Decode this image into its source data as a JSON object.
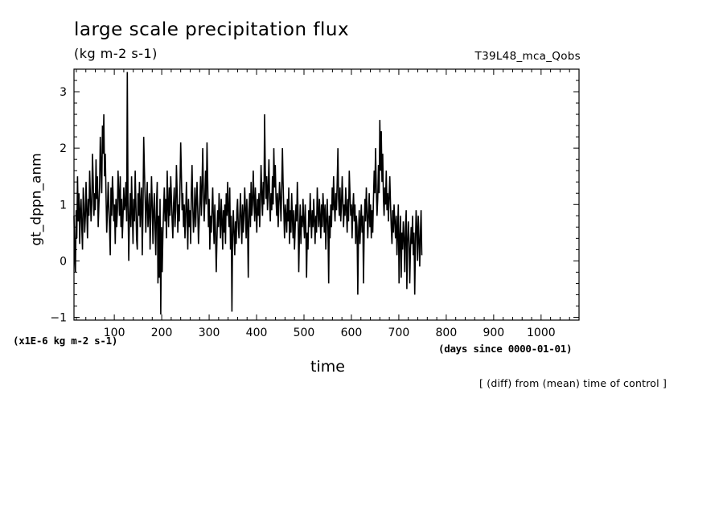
{
  "chart_data": {
    "type": "line",
    "title": "large scale precipitation flux",
    "units": "(kg m-2 s-1)",
    "run_name": "T39L48_mca_Qobs",
    "ylabel": "gt_dppn_anm",
    "xlabel": "time",
    "x_units": "(days since 0000-01-01)",
    "y_scale_note": "(x1E-6 kg m-2 s-1)",
    "annotation": "[ (diff) from (mean) time of control ]",
    "xlim": [
      15,
      1080
    ],
    "ylim": [
      -1.05,
      3.4
    ],
    "x_ticks": [
      100,
      200,
      300,
      400,
      500,
      600,
      700,
      800,
      900,
      1000
    ],
    "y_ticks": [
      -1,
      0,
      1,
      2,
      3
    ],
    "series": [
      {
        "name": "gt_dppn_anm",
        "x_start": 15,
        "x_step": 1.5,
        "values": [
          0.8,
          0.1,
          -0.2,
          0.9,
          0.4,
          1.5,
          0.7,
          1.2,
          0.3,
          0.9,
          1.1,
          0.6,
          0.2,
          1.3,
          1.0,
          0.5,
          0.8,
          1.4,
          0.9,
          0.4,
          1.1,
          0.8,
          1.6,
          1.2,
          0.7,
          1.0,
          1.9,
          1.4,
          0.8,
          1.2,
          0.9,
          1.8,
          1.1,
          1.5,
          0.6,
          1.0,
          1.3,
          2.2,
          1.7,
          1.2,
          2.4,
          1.9,
          2.6,
          1.5,
          1.9,
          1.2,
          0.5,
          0.9,
          1.4,
          1.0,
          0.6,
          0.1,
          1.3,
          0.8,
          1.5,
          1.2,
          0.7,
          1.0,
          0.3,
          1.1,
          0.6,
          0.9,
          1.6,
          1.2,
          0.8,
          1.5,
          0.6,
          1.1,
          0.4,
          0.8,
          1.3,
          0.9,
          1.0,
          1.4,
          0.7,
          3.35,
          1.0,
          0.0,
          0.8,
          1.2,
          0.6,
          1.5,
          0.9,
          0.3,
          1.1,
          0.7,
          1.6,
          1.0,
          0.4,
          0.2,
          1.2,
          0.8,
          1.4,
          0.6,
          1.0,
          1.3,
          0.1,
          0.9,
          2.2,
          1.6,
          1.1,
          0.5,
          1.0,
          1.4,
          0.6,
          0.9,
          1.2,
          0.2,
          0.8,
          1.5,
          1.0,
          0.3,
          0.9,
          1.2,
          0.6,
          0.1,
          1.0,
          1.4,
          -0.4,
          0.8,
          -0.3,
          1.1,
          -0.95,
          0.6,
          -0.2,
          0.5,
          0.9,
          1.3,
          0.7,
          1.1,
          0.4,
          1.6,
          1.0,
          0.6,
          1.3,
          0.8,
          1.5,
          1.1,
          0.7,
          0.4,
          1.0,
          1.3,
          0.6,
          0.9,
          1.7,
          1.2,
          0.5,
          1.0,
          0.7,
          1.3,
          2.1,
          1.5,
          0.9,
          1.2,
          0.6,
          1.0,
          0.4,
          0.8,
          1.4,
          0.9,
          0.2,
          1.1,
          0.6,
          0.9,
          0.3,
          1.2,
          1.7,
          1.0,
          0.5,
          0.8,
          1.3,
          0.6,
          1.0,
          1.4,
          0.9,
          0.3,
          0.7,
          1.1,
          1.5,
          0.8,
          1.3,
          2.0,
          1.2,
          0.7,
          1.1,
          1.6,
          1.0,
          2.1,
          1.4,
          0.6,
          1.1,
          0.2,
          0.8,
          0.5,
          0.9,
          1.3,
          0.7,
          0.3,
          1.0,
          0.5,
          -0.2,
          0.4,
          0.9,
          0.6,
          1.2,
          0.8,
          0.4,
          1.1,
          0.7,
          0.2,
          0.9,
          0.5,
          1.0,
          0.3,
          1.2,
          0.8,
          1.4,
          0.9,
          0.6,
          1.3,
          0.2,
          0.8,
          -0.9,
          0.4,
          0.9,
          0.5,
          0.1,
          0.7,
          0.3,
          0.9,
          1.1,
          0.6,
          0.4,
          0.8,
          1.2,
          0.7,
          0.3,
          1.0,
          0.5,
          0.8,
          1.3,
          0.9,
          0.4,
          1.1,
          0.7,
          -0.3,
          0.9,
          1.2,
          0.6,
          1.4,
          0.8,
          1.0,
          1.6,
          1.1,
          0.7,
          1.3,
          0.9,
          0.5,
          1.1,
          0.8,
          1.2,
          0.6,
          1.0,
          1.7,
          1.2,
          0.8,
          1.4,
          1.0,
          2.6,
          1.6,
          1.1,
          1.5,
          0.9,
          1.3,
          1.8,
          1.1,
          0.7,
          1.2,
          0.9,
          1.5,
          1.0,
          2.0,
          1.3,
          1.7,
          1.1,
          0.8,
          1.2,
          0.6,
          1.0,
          1.4,
          1.1,
          0.7,
          1.3,
          2.0,
          1.4,
          0.9,
          0.4,
          1.0,
          0.8,
          0.5,
          1.1,
          0.7,
          1.3,
          0.3,
          0.9,
          0.5,
          1.2,
          0.8,
          0.4,
          0.9,
          0.2,
          0.6,
          1.0,
          0.7,
          1.4,
          0.9,
          -0.2,
          0.5,
          1.0,
          0.3,
          0.8,
          0.6,
          1.1,
          0.7,
          0.4,
          1.0,
          0.6,
          -0.3,
          0.5,
          0.2,
          0.9,
          0.6,
          1.2,
          0.8,
          0.4,
          0.9,
          0.6,
          1.1,
          0.7,
          0.3,
          0.8,
          0.5,
          1.3,
          0.9,
          0.6,
          1.1,
          0.8,
          0.4,
          1.0,
          0.6,
          1.2,
          0.9,
          0.5,
          1.0,
          0.2,
          0.7,
          1.1,
          0.6,
          -0.4,
          0.8,
          0.4,
          1.0,
          0.6,
          1.3,
          0.9,
          1.5,
          1.0,
          0.7,
          1.2,
          0.9,
          1.4,
          2.0,
          1.1,
          0.8,
          1.3,
          0.7,
          1.0,
          1.5,
          1.1,
          0.6,
          1.0,
          0.8,
          1.3,
          0.9,
          0.5,
          1.1,
          0.7,
          1.6,
          1.2,
          0.8,
          1.0,
          0.4,
          0.9,
          1.2,
          0.7,
          1.0,
          0.3,
          0.8,
          0.6,
          -0.6,
          0.5,
          0.9,
          0.3,
          0.7,
          1.0,
          0.5,
          0.8,
          -0.4,
          0.6,
          1.1,
          0.7,
          1.3,
          0.9,
          0.4,
          0.8,
          1.2,
          0.6,
          1.0,
          0.4,
          0.9,
          0.5,
          1.1,
          1.6,
          1.2,
          2.0,
          1.3,
          0.8,
          1.1,
          1.7,
          1.2,
          2.5,
          1.6,
          2.3,
          1.4,
          1.9,
          1.1,
          0.8,
          1.3,
          1.0,
          1.6,
          0.9,
          1.2,
          0.7,
          1.1,
          1.5,
          1.0,
          0.6,
          0.3,
          0.9,
          0.5,
          1.0,
          0.7,
          0.4,
          0.8,
          0.1,
          0.6,
          1.0,
          -0.4,
          0.4,
          0.8,
          -0.3,
          0.5,
          0.2,
          0.7,
          0.4,
          -0.2,
          0.6,
          0.9,
          -0.5,
          0.3,
          0.7,
          0.4,
          -0.4,
          0.2,
          0.6,
          0.3,
          0.8,
          0.1,
          0.5,
          -0.6,
          0.3,
          0.9,
          0.6,
          0.0,
          0.8,
          0.4,
          -0.1,
          0.5,
          0.9,
          0.1
        ]
      }
    ]
  }
}
